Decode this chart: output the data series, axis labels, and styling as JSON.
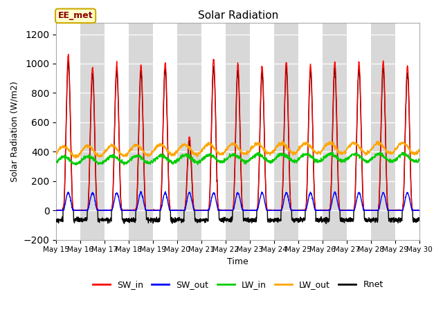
{
  "title": "Solar Radiation",
  "ylabel": "Solar Radiation (W/m2)",
  "xlabel": "Time",
  "annotation": "EE_met",
  "ylim": [
    -200,
    1280
  ],
  "yticks": [
    -200,
    0,
    200,
    400,
    600,
    800,
    1000,
    1200
  ],
  "n_days": 15,
  "start_day": 15,
  "colors": {
    "SW_in": "#ff0000",
    "SW_out": "#0000ff",
    "LW_in": "#00cc00",
    "LW_out": "#ffa500",
    "Rnet": "#000000"
  },
  "legend_labels": [
    "SW_in",
    "SW_out",
    "LW_in",
    "LW_out",
    "Rnet"
  ],
  "background_stripe_color": "#d8d8d8",
  "fig_background": "#ffffff",
  "annotation_color": "#8b0000",
  "annotation_bg": "#ffffcc",
  "annotation_edge": "#ccaa00"
}
